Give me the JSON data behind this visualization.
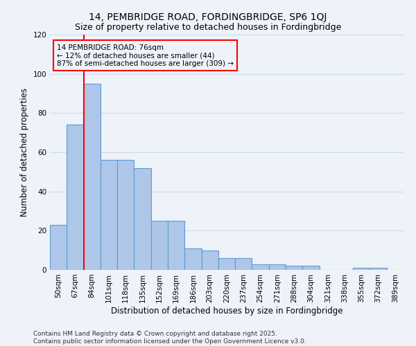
{
  "title": "14, PEMBRIDGE ROAD, FORDINGBRIDGE, SP6 1QJ",
  "subtitle": "Size of property relative to detached houses in Fordingbridge",
  "xlabel": "Distribution of detached houses by size in Fordingbridge",
  "ylabel": "Number of detached properties",
  "bar_labels": [
    "50sqm",
    "67sqm",
    "84sqm",
    "101sqm",
    "118sqm",
    "135sqm",
    "152sqm",
    "169sqm",
    "186sqm",
    "203sqm",
    "220sqm",
    "237sqm",
    "254sqm",
    "271sqm",
    "288sqm",
    "304sqm",
    "321sqm",
    "338sqm",
    "355sqm",
    "372sqm",
    "389sqm"
  ],
  "bar_values": [
    23,
    74,
    95,
    56,
    56,
    52,
    25,
    25,
    11,
    10,
    6,
    6,
    3,
    3,
    2,
    2,
    0,
    0,
    1,
    1,
    0
  ],
  "bar_color": "#aec6e8",
  "bar_edge_color": "#5b9bd5",
  "annotation_title": "14 PEMBRIDGE ROAD: 76sqm",
  "annotation_line1": "← 12% of detached houses are smaller (44)",
  "annotation_line2": "87% of semi-detached houses are larger (309) →",
  "ylim": [
    0,
    120
  ],
  "footnote1": "Contains HM Land Registry data © Crown copyright and database right 2025.",
  "footnote2": "Contains public sector information licensed under the Open Government Licence v3.0.",
  "background_color": "#eef2f9",
  "grid_color": "#d0d8e8",
  "title_fontsize": 10,
  "subtitle_fontsize": 9,
  "axis_label_fontsize": 8.5,
  "tick_fontsize": 7.5,
  "annotation_fontsize": 7.5,
  "footnote_fontsize": 6.5
}
